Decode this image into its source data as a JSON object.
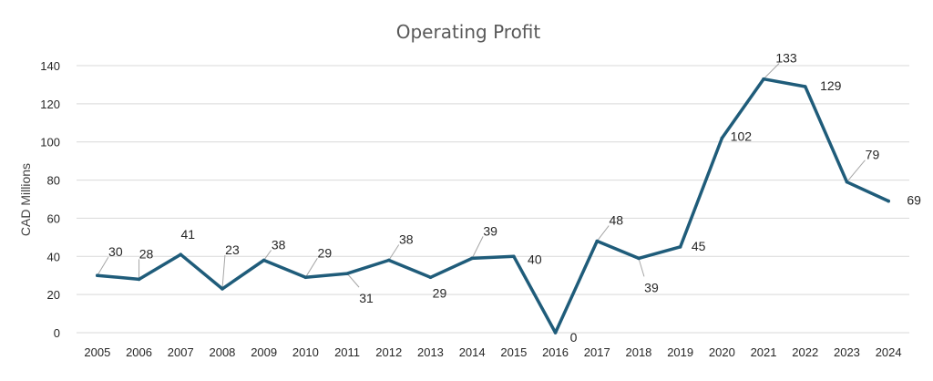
{
  "chart_data": {
    "type": "line",
    "title": "Operating Profit",
    "xlabel": "",
    "ylabel": "CAD Millions",
    "ylim": [
      0,
      140
    ],
    "yticks": [
      0,
      20,
      40,
      60,
      80,
      100,
      120,
      140
    ],
    "grid": true,
    "legend": "none",
    "categories": [
      "2005",
      "2006",
      "2007",
      "2008",
      "2009",
      "2010",
      "2011",
      "2012",
      "2013",
      "2014",
      "2015",
      "2016",
      "2017",
      "2018",
      "2019",
      "2020",
      "2021",
      "2022",
      "2023",
      "2024"
    ],
    "series": [
      {
        "values": [
          30,
          28,
          41,
          23,
          38,
          29,
          31,
          38,
          29,
          39,
          40,
          0,
          48,
          39,
          45,
          102,
          133,
          129,
          79,
          69
        ],
        "color": "#1f5c7a"
      }
    ]
  }
}
